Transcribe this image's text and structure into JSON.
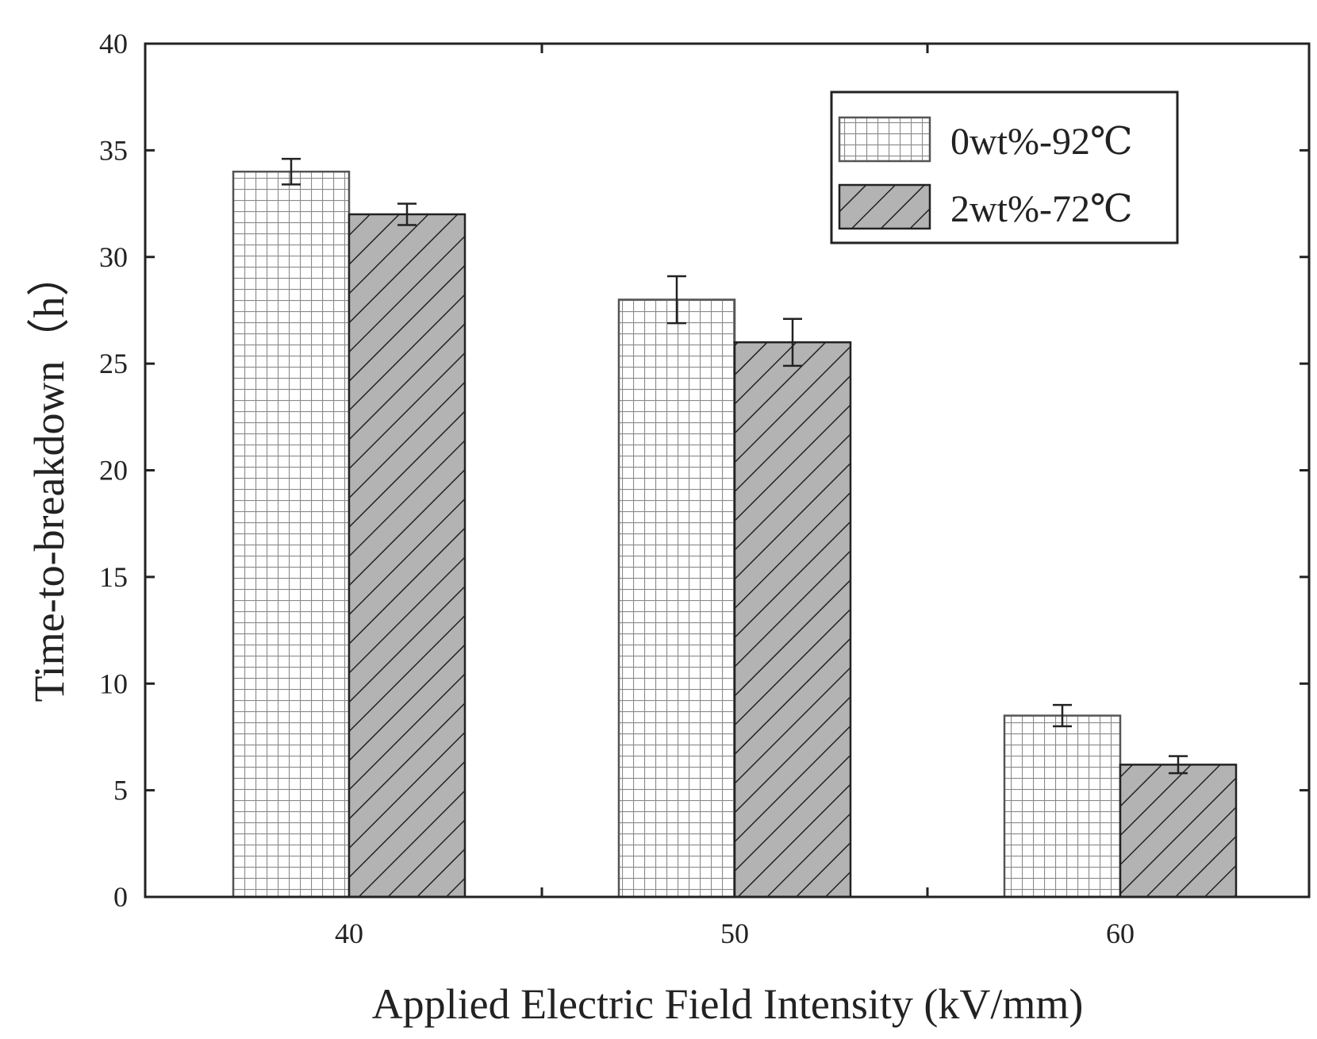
{
  "chart_data": {
    "type": "bar",
    "title": "",
    "xlabel": "Applied Electric Field Intensity (kV/mm)",
    "ylabel": "Time-to-breakdown（h）",
    "categories": [
      "40",
      "50",
      "60"
    ],
    "ylim": [
      0,
      40
    ],
    "yticks": [
      0,
      5,
      10,
      15,
      20,
      25,
      30,
      35,
      40
    ],
    "ytick_labels": [
      "0",
      "5",
      "10",
      "15",
      "20",
      "25",
      "30",
      "35",
      "40"
    ],
    "series": [
      {
        "name": "0wt%-92℃",
        "values": [
          34,
          28,
          8.5
        ],
        "errors": [
          0.6,
          1.1,
          0.5
        ],
        "pattern": "grid",
        "fill": "#ffffff"
      },
      {
        "name": "2wt%-72℃",
        "values": [
          32,
          26,
          6.2
        ],
        "errors": [
          0.5,
          1.1,
          0.4
        ],
        "pattern": "hatch",
        "fill": "#b3b3b3"
      }
    ],
    "legend": "top-right",
    "grid": false
  }
}
